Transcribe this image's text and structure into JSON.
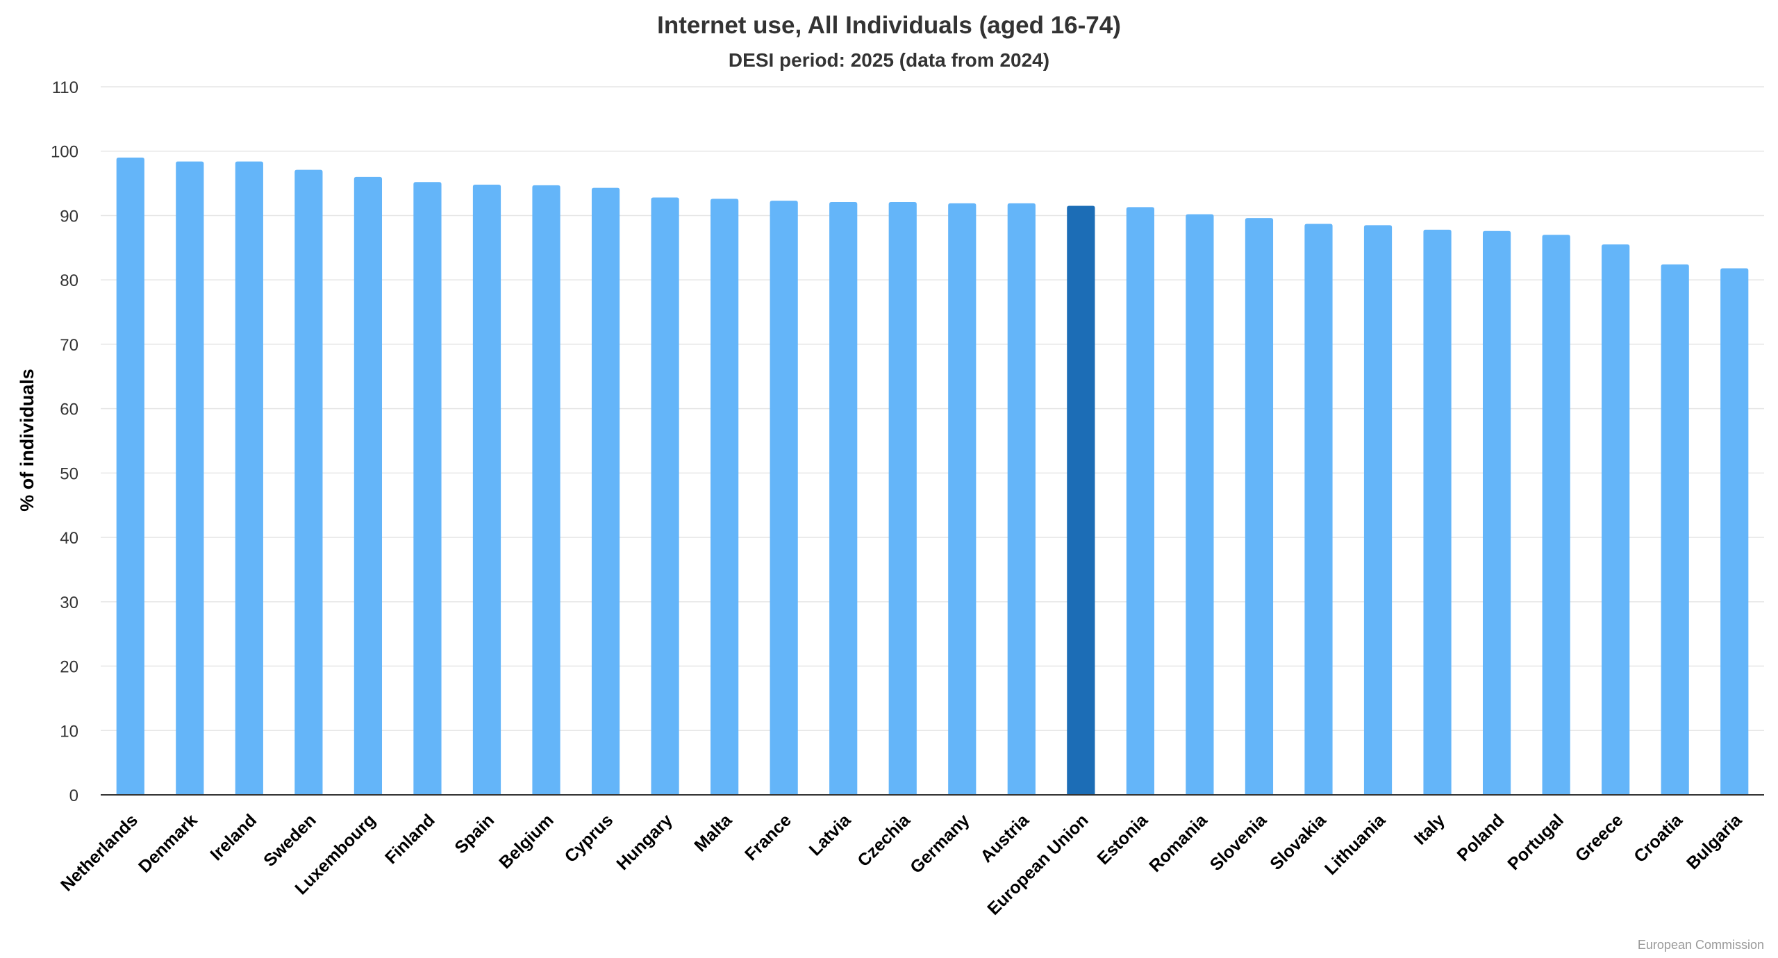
{
  "chart_data": {
    "type": "bar",
    "title": "Internet use, All Individuals (aged 16-74)",
    "subtitle": "DESI period: 2025 (data from 2024)",
    "xlabel": "",
    "ylabel": "% of individuals",
    "ylim": [
      0,
      110
    ],
    "yticks": [
      0,
      10,
      20,
      30,
      40,
      50,
      60,
      70,
      80,
      90,
      100,
      110
    ],
    "grid": true,
    "legend": "none",
    "categories": [
      "Netherlands",
      "Denmark",
      "Ireland",
      "Sweden",
      "Luxembourg",
      "Finland",
      "Spain",
      "Belgium",
      "Cyprus",
      "Hungary",
      "Malta",
      "France",
      "Latvia",
      "Czechia",
      "Germany",
      "Austria",
      "European Union",
      "Estonia",
      "Romania",
      "Slovenia",
      "Slovakia",
      "Lithuania",
      "Italy",
      "Poland",
      "Portugal",
      "Greece",
      "Croatia",
      "Bulgaria"
    ],
    "values": [
      99.0,
      98.4,
      98.4,
      97.1,
      96.0,
      95.2,
      94.8,
      94.7,
      94.3,
      92.8,
      92.6,
      92.3,
      92.1,
      92.1,
      91.9,
      91.9,
      91.5,
      91.3,
      90.2,
      89.6,
      88.7,
      88.5,
      87.8,
      87.6,
      87.0,
      85.5,
      82.4,
      81.8
    ],
    "highlight_category": "European Union",
    "colors": {
      "bar": "#64b5f9",
      "highlight": "#1c6db6",
      "grid": "#e6e6e6",
      "axis": "#333333"
    },
    "credit": "European Commission"
  }
}
